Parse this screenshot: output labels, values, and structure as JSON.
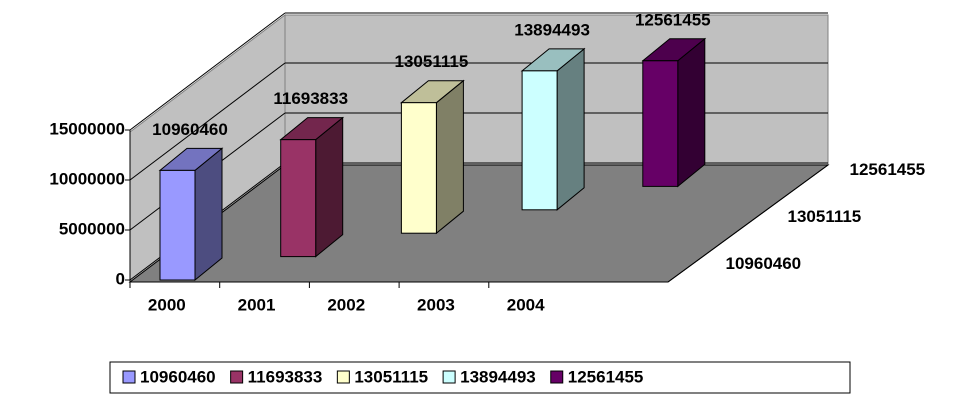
{
  "chart_data": {
    "type": "bar3d",
    "categories": [
      "2000",
      "2001",
      "2002",
      "2003",
      "2004"
    ],
    "series": [
      {
        "name": "10960460",
        "color": "#9999ff",
        "values": [
          10960460,
          null,
          null,
          null,
          null
        ]
      },
      {
        "name": "11693833",
        "color": "#993366",
        "values": [
          null,
          11693833,
          null,
          null,
          null
        ]
      },
      {
        "name": "13051115",
        "color": "#ffffcc",
        "values": [
          null,
          null,
          13051115,
          null,
          null
        ]
      },
      {
        "name": "13894493",
        "color": "#ccffff",
        "values": [
          null,
          null,
          null,
          13894493,
          null
        ]
      },
      {
        "name": "12561455",
        "color": "#660066",
        "values": [
          null,
          null,
          null,
          null,
          12561455
        ]
      }
    ],
    "depth_labels": [
      "10960460",
      null,
      "13051115",
      null,
      "12561455"
    ],
    "ylim": [
      0,
      15000000
    ],
    "yticks": [
      0,
      5000000,
      10000000,
      15000000
    ],
    "grid": true,
    "legend": "bottom"
  }
}
